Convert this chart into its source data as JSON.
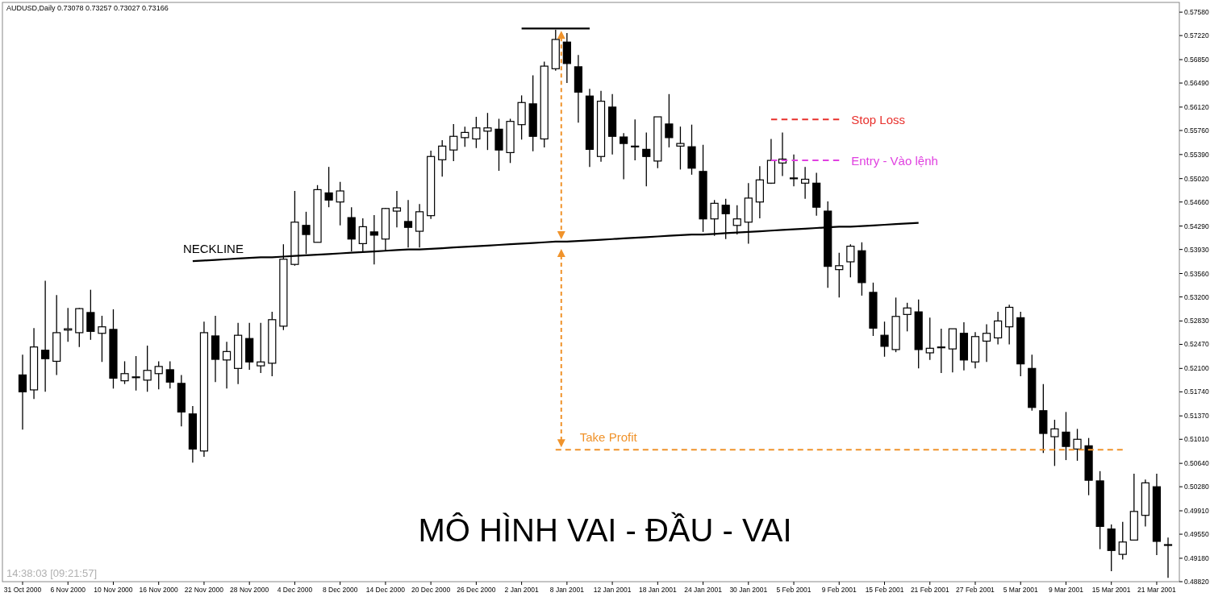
{
  "chart_data": {
    "type": "candlestick",
    "title": "MÔ HÌNH VAI - ĐẦU - VAI",
    "subtitle": "AUDUSD,Daily  0.73078 0.73257 0.73027 0.73166",
    "categories": [
      "31 Oct 2000",
      null,
      null,
      null,
      "6 Nov 2000",
      null,
      null,
      null,
      "10 Nov 2000",
      null,
      null,
      null,
      "16 Nov 2000",
      null,
      null,
      null,
      "22 Nov 2000",
      null,
      null,
      null,
      "28 Nov 2000",
      null,
      null,
      null,
      "4 Dec 2000",
      null,
      null,
      null,
      "8 Dec 2000",
      null,
      null,
      null,
      "14 Dec 2000",
      null,
      null,
      null,
      "20 Dec 2000",
      null,
      null,
      null,
      "26 Dec 2000",
      null,
      null,
      null,
      "2 Jan 2001",
      null,
      null,
      null,
      "8 Jan 2001",
      null,
      null,
      null,
      "12 Jan 2001",
      null,
      null,
      null,
      "18 Jan 2001",
      null,
      null,
      null,
      "24 Jan 2001",
      null,
      null,
      null,
      "30 Jan 2001",
      null,
      null,
      null,
      "5 Feb 2001",
      null,
      null,
      null,
      "9 Feb 2001",
      null,
      null,
      null,
      "15 Feb 2001",
      null,
      null,
      null,
      "21 Feb 2001",
      null,
      null,
      null,
      "27 Feb 2001",
      null,
      null,
      null,
      "5 Mar 2001",
      null,
      null,
      null,
      "9 Mar 2001",
      null,
      null,
      null,
      "15 Mar 2001",
      null,
      null,
      null,
      "21 Mar 2001",
      null
    ],
    "ohlc": [
      [
        0.52,
        0.5231,
        0.5116,
        0.5174
      ],
      [
        0.5177,
        0.5272,
        0.5163,
        0.5243
      ],
      [
        0.5238,
        0.5345,
        0.5174,
        0.5225
      ],
      [
        0.5221,
        0.5323,
        0.52,
        0.5265
      ],
      [
        0.5269,
        0.5303,
        0.5251,
        0.5271
      ],
      [
        0.5265,
        0.5303,
        0.5243,
        0.5302
      ],
      [
        0.5296,
        0.5331,
        0.5254,
        0.5267
      ],
      [
        0.5264,
        0.5291,
        0.522,
        0.5274
      ],
      [
        0.527,
        0.5301,
        0.5179,
        0.5195
      ],
      [
        0.5191,
        0.5221,
        0.5186,
        0.5202
      ],
      [
        0.5197,
        0.5229,
        0.5176,
        0.5197
      ],
      [
        0.5192,
        0.5245,
        0.5174,
        0.5207
      ],
      [
        0.5202,
        0.5221,
        0.5178,
        0.5213
      ],
      [
        0.5208,
        0.5221,
        0.5179,
        0.5189
      ],
      [
        0.5187,
        0.52,
        0.5121,
        0.5143
      ],
      [
        0.514,
        0.5152,
        0.5065,
        0.5086
      ],
      [
        0.5083,
        0.5282,
        0.5074,
        0.5265
      ],
      [
        0.526,
        0.5291,
        0.5189,
        0.5224
      ],
      [
        0.5223,
        0.5251,
        0.5179,
        0.5236
      ],
      [
        0.521,
        0.528,
        0.5186,
        0.5261
      ],
      [
        0.5256,
        0.528,
        0.5208,
        0.522
      ],
      [
        0.5214,
        0.528,
        0.5203,
        0.522
      ],
      [
        0.5218,
        0.5297,
        0.5198,
        0.5285
      ],
      [
        0.5275,
        0.5401,
        0.5269,
        0.5378
      ],
      [
        0.537,
        0.5483,
        0.5368,
        0.5435
      ],
      [
        0.543,
        0.5451,
        0.5386,
        0.5416
      ],
      [
        0.5404,
        0.5492,
        0.5404,
        0.5485
      ],
      [
        0.548,
        0.552,
        0.5458,
        0.5469
      ],
      [
        0.5466,
        0.5497,
        0.543,
        0.5483
      ],
      [
        0.5442,
        0.5458,
        0.539,
        0.5409
      ],
      [
        0.5402,
        0.5441,
        0.539,
        0.5428
      ],
      [
        0.542,
        0.5446,
        0.537,
        0.5415
      ],
      [
        0.5409,
        0.5457,
        0.539,
        0.5456
      ],
      [
        0.5452,
        0.5483,
        0.5427,
        0.5457
      ],
      [
        0.5436,
        0.5469,
        0.5396,
        0.5427
      ],
      [
        0.5421,
        0.5463,
        0.5396,
        0.5451
      ],
      [
        0.5445,
        0.5545,
        0.544,
        0.5536
      ],
      [
        0.5531,
        0.5561,
        0.5505,
        0.5552
      ],
      [
        0.5546,
        0.5586,
        0.5529,
        0.5567
      ],
      [
        0.5565,
        0.5582,
        0.5551,
        0.5573
      ],
      [
        0.5563,
        0.5597,
        0.5549,
        0.558
      ],
      [
        0.5575,
        0.5603,
        0.5546,
        0.558
      ],
      [
        0.5578,
        0.5594,
        0.5514,
        0.5546
      ],
      [
        0.5542,
        0.5594,
        0.5526,
        0.559
      ],
      [
        0.5585,
        0.563,
        0.5562,
        0.5619
      ],
      [
        0.5617,
        0.5661,
        0.5544,
        0.5567
      ],
      [
        0.5563,
        0.5682,
        0.555,
        0.5675
      ],
      [
        0.5671,
        0.5731,
        0.5668,
        0.5716
      ],
      [
        0.5712,
        0.5726,
        0.5649,
        0.5679
      ],
      [
        0.5674,
        0.5692,
        0.5588,
        0.5635
      ],
      [
        0.5629,
        0.564,
        0.552,
        0.5547
      ],
      [
        0.5536,
        0.5637,
        0.5528,
        0.5621
      ],
      [
        0.5612,
        0.5632,
        0.5539,
        0.5567
      ],
      [
        0.5566,
        0.5572,
        0.5501,
        0.5556
      ],
      [
        0.5552,
        0.5593,
        0.553,
        0.5552
      ],
      [
        0.5547,
        0.5573,
        0.549,
        0.5536
      ],
      [
        0.5529,
        0.5597,
        0.5518,
        0.5597
      ],
      [
        0.5586,
        0.5632,
        0.555,
        0.5565
      ],
      [
        0.5552,
        0.5582,
        0.5516,
        0.5556
      ],
      [
        0.5551,
        0.5585,
        0.5508,
        0.5518
      ],
      [
        0.5513,
        0.5554,
        0.542,
        0.544
      ],
      [
        0.544,
        0.5469,
        0.5414,
        0.5464
      ],
      [
        0.5461,
        0.5471,
        0.5409,
        0.5448
      ],
      [
        0.543,
        0.5461,
        0.5416,
        0.544
      ],
      [
        0.5435,
        0.5495,
        0.5402,
        0.5472
      ],
      [
        0.5466,
        0.5521,
        0.5441,
        0.55
      ],
      [
        0.5495,
        0.5563,
        0.5494,
        0.553
      ],
      [
        0.5526,
        0.5573,
        0.5506,
        0.5532
      ],
      [
        0.5503,
        0.5539,
        0.549,
        0.5503
      ],
      [
        0.5495,
        0.552,
        0.5471,
        0.5501
      ],
      [
        0.5495,
        0.5511,
        0.5445,
        0.5458
      ],
      [
        0.5452,
        0.5467,
        0.5334,
        0.5367
      ],
      [
        0.5362,
        0.5388,
        0.5319,
        0.5368
      ],
      [
        0.5374,
        0.5401,
        0.535,
        0.5398
      ],
      [
        0.5391,
        0.5404,
        0.5322,
        0.5342
      ],
      [
        0.5327,
        0.5342,
        0.526,
        0.5272
      ],
      [
        0.5261,
        0.5282,
        0.5228,
        0.5244
      ],
      [
        0.5239,
        0.5319,
        0.5235,
        0.529
      ],
      [
        0.5293,
        0.5311,
        0.5267,
        0.5303
      ],
      [
        0.5297,
        0.5316,
        0.521,
        0.5239
      ],
      [
        0.5234,
        0.5288,
        0.5223,
        0.5241
      ],
      [
        0.5243,
        0.5271,
        0.5203,
        0.5243
      ],
      [
        0.524,
        0.5271,
        0.5204,
        0.5271
      ],
      [
        0.5264,
        0.5281,
        0.5207,
        0.5223
      ],
      [
        0.522,
        0.5266,
        0.521,
        0.5259
      ],
      [
        0.5252,
        0.5278,
        0.522,
        0.5264
      ],
      [
        0.5257,
        0.5297,
        0.5247,
        0.5283
      ],
      [
        0.5274,
        0.5308,
        0.5247,
        0.5304
      ],
      [
        0.5288,
        0.5297,
        0.5198,
        0.5217
      ],
      [
        0.521,
        0.5231,
        0.5145,
        0.515
      ],
      [
        0.5145,
        0.5186,
        0.508,
        0.511
      ],
      [
        0.5105,
        0.5131,
        0.506,
        0.5117
      ],
      [
        0.5112,
        0.5143,
        0.5069,
        0.509
      ],
      [
        0.5086,
        0.5117,
        0.5068,
        0.5101
      ],
      [
        0.5091,
        0.5103,
        0.5015,
        0.5038
      ],
      [
        0.5037,
        0.5052,
        0.4932,
        0.4967
      ],
      [
        0.4963,
        0.497,
        0.4898,
        0.493
      ],
      [
        0.4924,
        0.4974,
        0.4916,
        0.4943
      ],
      [
        0.4946,
        0.5048,
        0.4946,
        0.499
      ],
      [
        0.4984,
        0.5039,
        0.4967,
        0.5034
      ],
      [
        0.5028,
        0.5048,
        0.4923,
        0.4944
      ],
      [
        0.4939,
        0.495,
        0.4888,
        0.4939
      ]
    ],
    "series": [
      {
        "type": "line",
        "name": "NECKLINE",
        "color": "#000000",
        "line_style": "solid",
        "values": [
          null,
          null,
          null,
          null,
          null,
          null,
          null,
          null,
          null,
          null,
          null,
          null,
          null,
          null,
          null,
          0.5375,
          0.5376,
          0.5377,
          0.5378,
          0.5379,
          0.538,
          0.5381,
          0.5381,
          0.5382,
          0.5383,
          0.5384,
          0.5385,
          0.5386,
          0.5387,
          0.5388,
          0.5389,
          0.539,
          0.5391,
          0.5392,
          0.5393,
          0.5393,
          0.5394,
          0.5395,
          0.5396,
          0.5397,
          0.5398,
          0.5399,
          0.54,
          0.5401,
          0.5402,
          0.5403,
          0.5404,
          0.5405,
          0.5405,
          0.5406,
          0.5407,
          0.5408,
          0.5409,
          0.541,
          0.5411,
          0.5412,
          0.5413,
          0.5414,
          0.5415,
          0.5416,
          0.5416,
          0.5417,
          0.5418,
          0.5419,
          0.542,
          0.5421,
          0.5422,
          0.5423,
          0.5424,
          0.5425,
          0.5426,
          0.5427,
          0.5428,
          0.5428,
          0.5429,
          0.543,
          0.5431,
          0.5432,
          0.5433,
          0.5434,
          null,
          null,
          null,
          null,
          null,
          null,
          null,
          null,
          null,
          null,
          null,
          null,
          null,
          null,
          null,
          null,
          null,
          null,
          null,
          null,
          null,
          null
        ]
      },
      {
        "type": "line",
        "color": "#000000",
        "line_style": "solid",
        "values": [
          null,
          null,
          null,
          null,
          null,
          null,
          null,
          null,
          null,
          null,
          null,
          null,
          null,
          null,
          null,
          null,
          null,
          null,
          null,
          null,
          null,
          null,
          null,
          null,
          null,
          null,
          null,
          null,
          null,
          null,
          null,
          null,
          null,
          null,
          null,
          null,
          null,
          null,
          null,
          null,
          null,
          null,
          null,
          null,
          0.5733,
          0.5733,
          0.5733,
          0.5733,
          0.5733,
          0.5733,
          0.5733,
          null,
          null,
          null,
          null,
          null,
          null,
          null,
          null,
          null,
          null,
          null,
          null,
          null,
          null,
          null,
          null,
          null,
          null,
          null,
          null,
          null,
          null,
          null,
          null,
          null,
          null,
          null,
          null,
          null,
          null,
          null,
          null,
          null,
          null,
          null,
          null,
          null,
          null,
          null,
          null,
          null,
          null,
          null,
          null,
          null,
          null,
          null,
          null,
          null,
          null,
          null
        ]
      },
      {
        "type": "line",
        "name": "Stop Loss",
        "color": "#e8302c",
        "line_style": "dashed",
        "values": [
          null,
          null,
          null,
          null,
          null,
          null,
          null,
          null,
          null,
          null,
          null,
          null,
          null,
          null,
          null,
          null,
          null,
          null,
          null,
          null,
          null,
          null,
          null,
          null,
          null,
          null,
          null,
          null,
          null,
          null,
          null,
          null,
          null,
          null,
          null,
          null,
          null,
          null,
          null,
          null,
          null,
          null,
          null,
          null,
          null,
          null,
          null,
          null,
          null,
          null,
          null,
          null,
          null,
          null,
          null,
          null,
          null,
          null,
          null,
          null,
          null,
          null,
          null,
          null,
          null,
          null,
          0.5593,
          0.5593,
          0.5593,
          0.5593,
          0.5593,
          0.5593,
          0.5593,
          null,
          null,
          null,
          null,
          null,
          null,
          null,
          null,
          null,
          null,
          null,
          null,
          null,
          null,
          null,
          null,
          null,
          null,
          null,
          null,
          null,
          null,
          null,
          null,
          null,
          null,
          null,
          null,
          null
        ]
      },
      {
        "type": "line",
        "name": "Entry - Vào lệnh",
        "color": "#e040e0",
        "line_style": "dashed",
        "values": [
          null,
          null,
          null,
          null,
          null,
          null,
          null,
          null,
          null,
          null,
          null,
          null,
          null,
          null,
          null,
          null,
          null,
          null,
          null,
          null,
          null,
          null,
          null,
          null,
          null,
          null,
          null,
          null,
          null,
          null,
          null,
          null,
          null,
          null,
          null,
          null,
          null,
          null,
          null,
          null,
          null,
          null,
          null,
          null,
          null,
          null,
          null,
          null,
          null,
          null,
          null,
          null,
          null,
          null,
          null,
          null,
          null,
          null,
          null,
          null,
          null,
          null,
          null,
          null,
          null,
          null,
          0.553,
          0.553,
          0.553,
          0.553,
          0.553,
          0.553,
          0.553,
          null,
          null,
          null,
          null,
          null,
          null,
          null,
          null,
          null,
          null,
          null,
          null,
          null,
          null,
          null,
          null,
          null,
          null,
          null,
          null,
          null,
          null,
          null,
          null,
          null,
          null,
          null,
          null,
          null
        ]
      },
      {
        "type": "line",
        "name": "Take Profit",
        "color": "#f0932b",
        "line_style": "dashed",
        "values": [
          null,
          null,
          null,
          null,
          null,
          null,
          null,
          null,
          null,
          null,
          null,
          null,
          null,
          null,
          null,
          null,
          null,
          null,
          null,
          null,
          null,
          null,
          null,
          null,
          null,
          null,
          null,
          null,
          null,
          null,
          null,
          null,
          null,
          null,
          null,
          null,
          null,
          null,
          null,
          null,
          null,
          null,
          null,
          null,
          null,
          null,
          null,
          0.5085,
          0.5085,
          0.5085,
          0.5085,
          0.5085,
          0.5085,
          0.5085,
          0.5085,
          0.5085,
          0.5085,
          0.5085,
          0.5085,
          0.5085,
          0.5085,
          0.5085,
          0.5085,
          0.5085,
          0.5085,
          0.5085,
          0.5085,
          0.5085,
          0.5085,
          0.5085,
          0.5085,
          0.5085,
          0.5085,
          0.5085,
          0.5085,
          0.5085,
          0.5085,
          0.5085,
          0.5085,
          0.5085,
          0.5085,
          0.5085,
          0.5085,
          0.5085,
          0.5085,
          0.5085,
          0.5085,
          0.5085,
          0.5085,
          0.5085,
          0.5085,
          0.5085,
          0.5085,
          0.5085,
          0.5085,
          0.5085,
          0.5085,
          0.5085,
          null,
          null,
          null,
          null
        ]
      }
    ],
    "ylim": [
      0.4882,
      0.5773
    ],
    "yticks": [
      {
        "value": 0.5758,
        "label": "0.57580"
      },
      {
        "value": 0.5722,
        "label": "0.57220"
      },
      {
        "value": 0.5685,
        "label": "0.56850"
      },
      {
        "value": 0.5649,
        "label": "0.56490"
      },
      {
        "value": 0.5612,
        "label": "0.56120"
      },
      {
        "value": 0.5576,
        "label": "0.55760"
      },
      {
        "value": 0.5539,
        "label": "0.55390"
      },
      {
        "value": 0.5502,
        "label": "0.55020"
      },
      {
        "value": 0.5466,
        "label": "0.54660"
      },
      {
        "value": 0.5429,
        "label": "0.54290"
      },
      {
        "value": 0.5393,
        "label": "0.53930"
      },
      {
        "value": 0.5356,
        "label": "0.53560"
      },
      {
        "value": 0.532,
        "label": "0.53200"
      },
      {
        "value": 0.5283,
        "label": "0.52830"
      },
      {
        "value": 0.5247,
        "label": "0.52470"
      },
      {
        "value": 0.521,
        "label": "0.52100"
      },
      {
        "value": 0.5174,
        "label": "0.51740"
      },
      {
        "value": 0.5137,
        "label": "0.51370"
      },
      {
        "value": 0.5101,
        "label": "0.51010"
      },
      {
        "value": 0.5064,
        "label": "0.50640"
      },
      {
        "value": 0.5028,
        "label": "0.50280"
      },
      {
        "value": 0.4991,
        "label": "0.49910"
      },
      {
        "value": 0.4955,
        "label": "0.49550"
      },
      {
        "value": 0.4918,
        "label": "0.49180"
      },
      {
        "value": 0.4882,
        "label": "0.48820"
      }
    ],
    "annotations": [
      "14:38:03 [09:21:57]"
    ]
  }
}
